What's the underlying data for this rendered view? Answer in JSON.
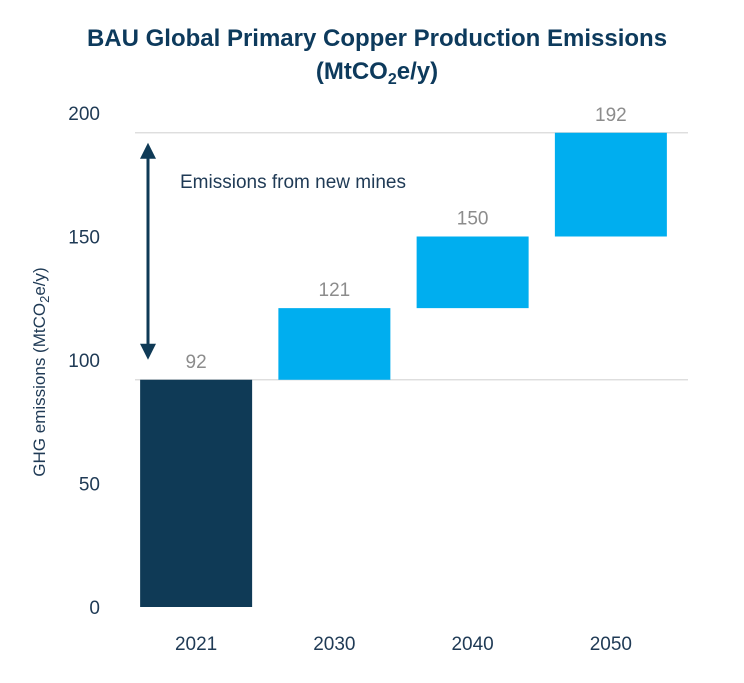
{
  "chart_data": {
    "type": "bar",
    "subtype": "waterfall",
    "title": "BAU Global Primary Copper Production Emissions",
    "subtitle_parts": {
      "pre": "(MtCO",
      "sub": "2",
      "post": "e/y)"
    },
    "ylabel_parts": {
      "pre": "GHG emissions (MtCO",
      "sub": "2",
      "post": "e/y)"
    },
    "xlabel": "",
    "categories": [
      "2021",
      "2030",
      "2040",
      "2050"
    ],
    "bars": [
      {
        "category": "2021",
        "start": 0,
        "end": 92,
        "label": "92",
        "kind": "base"
      },
      {
        "category": "2030",
        "start": 92,
        "end": 121,
        "label": "121",
        "kind": "increment"
      },
      {
        "category": "2040",
        "start": 121,
        "end": 150,
        "label": "150",
        "kind": "increment"
      },
      {
        "category": "2050",
        "start": 150,
        "end": 192,
        "label": "192",
        "kind": "increment"
      }
    ],
    "ylim": [
      0,
      200
    ],
    "yticks": [
      "0",
      "50",
      "100",
      "150",
      "200"
    ],
    "reference_lines": [
      92,
      192
    ],
    "annotation": {
      "text": "Emissions from new mines",
      "from": 92,
      "to": 192
    },
    "colors": {
      "base": "#0f3a56",
      "increment": "#00aeef",
      "refline": "#d9d9d9",
      "arrow": "#0f3a56"
    },
    "grid": false,
    "legend": "none"
  }
}
